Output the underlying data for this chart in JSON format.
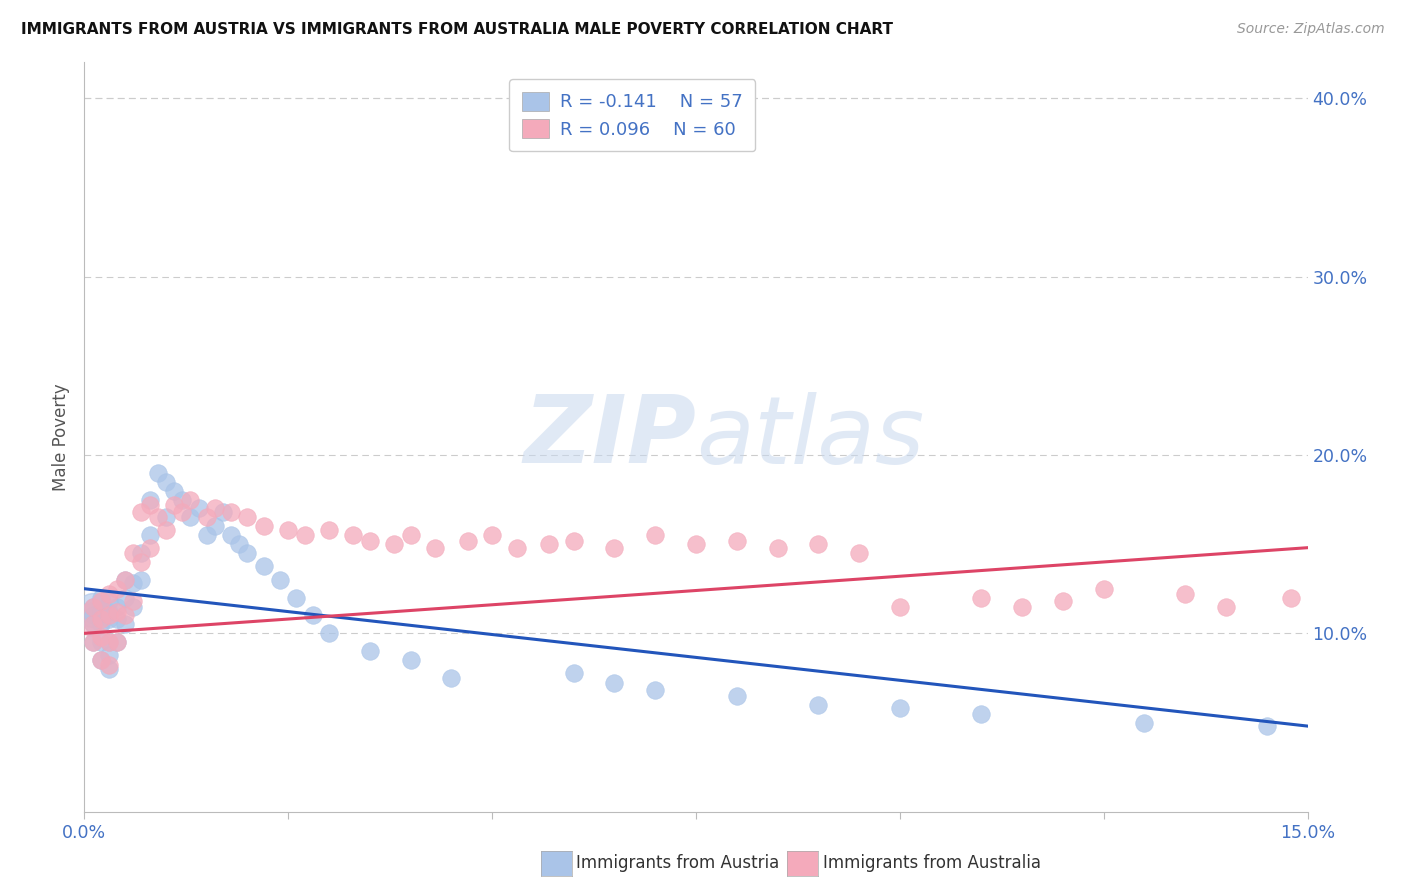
{
  "title": "IMMIGRANTS FROM AUSTRIA VS IMMIGRANTS FROM AUSTRALIA MALE POVERTY CORRELATION CHART",
  "source": "Source: ZipAtlas.com",
  "ylabel": "Male Poverty",
  "xlim": [
    0.0,
    0.15
  ],
  "ylim": [
    0.0,
    0.42
  ],
  "austria_color": "#aac4e8",
  "australia_color": "#f4aabb",
  "austria_line_color": "#2255bb",
  "australia_line_color": "#dd4466",
  "austria_R": -0.141,
  "austria_N": 57,
  "australia_R": 0.096,
  "australia_N": 60,
  "legend_label_austria": "Immigrants from Austria",
  "legend_label_australia": "Immigrants from Australia",
  "tick_color": "#4472c4",
  "grid_color": "#cccccc",
  "austria_x": [
    0.001,
    0.001,
    0.001,
    0.001,
    0.002,
    0.002,
    0.002,
    0.002,
    0.002,
    0.003,
    0.003,
    0.003,
    0.003,
    0.003,
    0.003,
    0.004,
    0.004,
    0.004,
    0.005,
    0.005,
    0.005,
    0.006,
    0.006,
    0.007,
    0.007,
    0.008,
    0.008,
    0.009,
    0.01,
    0.01,
    0.011,
    0.012,
    0.013,
    0.014,
    0.015,
    0.016,
    0.017,
    0.018,
    0.019,
    0.02,
    0.022,
    0.024,
    0.026,
    0.028,
    0.03,
    0.035,
    0.04,
    0.045,
    0.06,
    0.065,
    0.07,
    0.08,
    0.09,
    0.1,
    0.11,
    0.13,
    0.145
  ],
  "austria_y": [
    0.115,
    0.11,
    0.105,
    0.095,
    0.12,
    0.112,
    0.105,
    0.095,
    0.085,
    0.118,
    0.112,
    0.108,
    0.095,
    0.088,
    0.08,
    0.115,
    0.108,
    0.095,
    0.13,
    0.12,
    0.105,
    0.128,
    0.115,
    0.145,
    0.13,
    0.175,
    0.155,
    0.19,
    0.185,
    0.165,
    0.18,
    0.175,
    0.165,
    0.17,
    0.155,
    0.16,
    0.168,
    0.155,
    0.15,
    0.145,
    0.138,
    0.13,
    0.12,
    0.11,
    0.1,
    0.09,
    0.085,
    0.075,
    0.078,
    0.072,
    0.068,
    0.065,
    0.06,
    0.058,
    0.055,
    0.05,
    0.048
  ],
  "australia_x": [
    0.001,
    0.001,
    0.001,
    0.002,
    0.002,
    0.002,
    0.002,
    0.003,
    0.003,
    0.003,
    0.003,
    0.004,
    0.004,
    0.004,
    0.005,
    0.005,
    0.006,
    0.006,
    0.007,
    0.007,
    0.008,
    0.008,
    0.009,
    0.01,
    0.011,
    0.012,
    0.013,
    0.015,
    0.016,
    0.018,
    0.02,
    0.022,
    0.025,
    0.027,
    0.03,
    0.033,
    0.035,
    0.038,
    0.04,
    0.043,
    0.047,
    0.05,
    0.053,
    0.057,
    0.06,
    0.065,
    0.07,
    0.075,
    0.08,
    0.085,
    0.09,
    0.095,
    0.1,
    0.11,
    0.115,
    0.12,
    0.125,
    0.135,
    0.14,
    0.148
  ],
  "australia_y": [
    0.105,
    0.115,
    0.095,
    0.118,
    0.108,
    0.098,
    0.085,
    0.122,
    0.11,
    0.095,
    0.082,
    0.125,
    0.112,
    0.095,
    0.13,
    0.11,
    0.145,
    0.118,
    0.168,
    0.14,
    0.172,
    0.148,
    0.165,
    0.158,
    0.172,
    0.168,
    0.175,
    0.165,
    0.17,
    0.168,
    0.165,
    0.16,
    0.158,
    0.155,
    0.158,
    0.155,
    0.152,
    0.15,
    0.155,
    0.148,
    0.152,
    0.155,
    0.148,
    0.15,
    0.152,
    0.148,
    0.155,
    0.15,
    0.152,
    0.148,
    0.15,
    0.145,
    0.115,
    0.12,
    0.115,
    0.118,
    0.125,
    0.122,
    0.115,
    0.12
  ],
  "austria_line_x": [
    0.0,
    0.15
  ],
  "austria_line_y_start": 0.125,
  "austria_line_y_end": 0.048,
  "australia_line_x": [
    0.0,
    0.15
  ],
  "australia_line_y_start": 0.1,
  "australia_line_y_end": 0.148
}
